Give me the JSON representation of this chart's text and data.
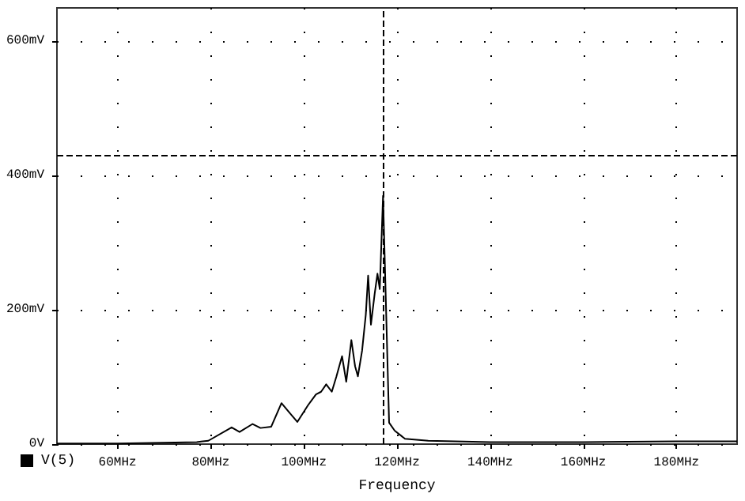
{
  "chart_data": {
    "type": "line",
    "xlabel": "Frequency",
    "x": [
      47,
      60,
      70,
      77,
      79.5,
      84.5,
      86.2,
      89,
      90.7,
      93,
      95.2,
      96.9,
      98.6,
      100.9,
      102.6,
      103.7,
      104.8,
      106,
      107,
      108.2,
      109.1,
      110.2,
      111,
      111.6,
      112.5,
      113.3,
      113.8,
      114.4,
      115.2,
      115.8,
      116.3,
      117,
      118.3,
      119.5,
      121.7,
      126.7,
      140,
      160,
      180,
      193
    ],
    "series": [
      {
        "name": "V(5)",
        "color": "#000000",
        "values": [
          1,
          1,
          2,
          3,
          5,
          25,
          18,
          30,
          24,
          26,
          61,
          47,
          33,
          58,
          74,
          78,
          89,
          78,
          101,
          131,
          93,
          155,
          116,
          101,
          139,
          193,
          251,
          178,
          224,
          254,
          231,
          370,
          32,
          20,
          8,
          5,
          3,
          3,
          4,
          4
        ]
      }
    ],
    "xlim": [
      47,
      193
    ],
    "xticks": [
      {
        "value": 60,
        "label": "60MHz"
      },
      {
        "value": 80,
        "label": "80MHz"
      },
      {
        "value": 100,
        "label": "100MHz"
      },
      {
        "value": 120,
        "label": "120MHz"
      },
      {
        "value": 140,
        "label": "140MHz"
      },
      {
        "value": 160,
        "label": "160MHz"
      },
      {
        "value": 180,
        "label": "180MHz"
      }
    ],
    "ylim": [
      0,
      650
    ],
    "yticks": [
      {
        "value": 0,
        "label": "0V"
      },
      {
        "value": 200,
        "label": "200mV"
      },
      {
        "value": 400,
        "label": "400mV"
      },
      {
        "value": 600,
        "label": "600mV"
      }
    ],
    "ref_lines": [
      {
        "axis": "x",
        "value": 117,
        "line_style": "dashed",
        "color": "#000000"
      },
      {
        "axis": "y",
        "value": 431,
        "line_style": "dashed",
        "color": "#000000"
      }
    ],
    "grid": true,
    "legend": "bottom left",
    "marker": "none",
    "line_style": "solid"
  }
}
